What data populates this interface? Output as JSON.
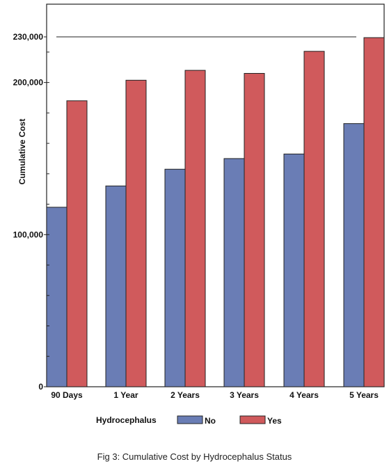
{
  "chart_data": {
    "type": "bar",
    "categories": [
      "90 Days",
      "1 Year",
      "2 Years",
      "3 Years",
      "4 Years",
      "5 Years"
    ],
    "series": [
      {
        "name": "No",
        "color": "#6a7db5",
        "values": [
          118000,
          132000,
          143000,
          150000,
          153000,
          173000
        ]
      },
      {
        "name": "Yes",
        "color": "#d05a5c",
        "values": [
          188000,
          201500,
          208000,
          206000,
          220500,
          229500
        ]
      }
    ],
    "ylabel": "Cumulative Cost",
    "ylim": [
      0,
      230000
    ],
    "yticks": [
      {
        "value": 0,
        "label": "0"
      },
      {
        "value": 100000,
        "label": "100,000"
      },
      {
        "value": 200000,
        "label": "200,000"
      },
      {
        "value": 230000,
        "label": "230,000"
      }
    ],
    "reference_line": 230000,
    "legend": {
      "title": "Hydrocephalus",
      "position": "bottom"
    },
    "caption": "Fig 3: Cumulative Cost by Hydrocephalus Status"
  }
}
